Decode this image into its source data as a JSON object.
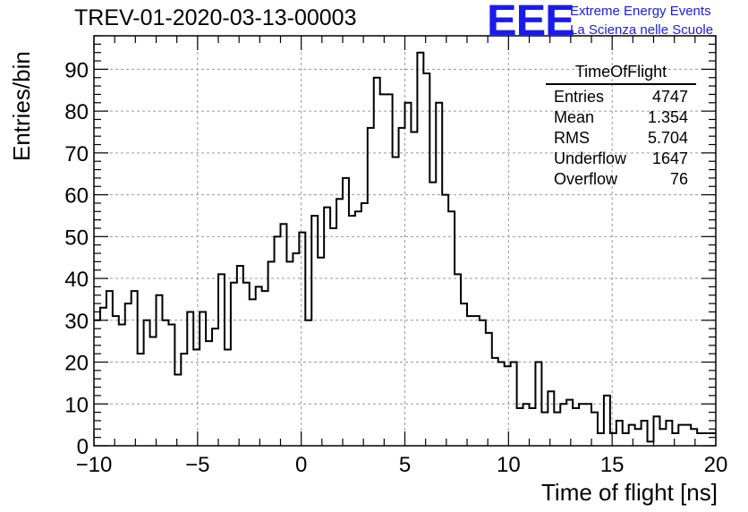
{
  "header": {
    "title": "TREV-01-2020-03-13-00003",
    "logo_text": "EEE",
    "logo_line1": "Extreme Energy Events",
    "logo_line2": "La Scienza nelle Scuole"
  },
  "stats_box": {
    "title": "TimeOfFlight",
    "rows": [
      {
        "label": "Entries",
        "value": "4747"
      },
      {
        "label": "Mean",
        "value": "1.354"
      },
      {
        "label": "RMS",
        "value": "5.704"
      },
      {
        "label": "Underflow",
        "value": "1647"
      },
      {
        "label": "Overflow",
        "value": "76"
      }
    ]
  },
  "colors": {
    "histogram": "#000000",
    "grid": "#999999",
    "logo": "#1a1aee"
  },
  "chart_data": {
    "type": "bar",
    "title": "TREV-01-2020-03-13-00003",
    "xlabel": "Time of flight [ns]",
    "ylabel": "Entries/bin",
    "xlim": [
      -10,
      20
    ],
    "ylim": [
      0,
      98
    ],
    "grid": true,
    "bin_width": 0.3,
    "xticks": [
      -10,
      -5,
      0,
      5,
      10,
      15,
      20
    ],
    "yticks": [
      0,
      10,
      20,
      30,
      40,
      50,
      60,
      70,
      80,
      90
    ],
    "values": [
      30,
      33,
      37,
      31,
      29,
      34,
      37,
      22,
      30,
      26,
      36,
      30,
      29,
      17,
      22,
      32,
      23,
      32,
      25,
      28,
      41,
      23,
      39,
      43,
      39,
      35,
      38,
      37,
      44,
      50,
      53,
      44,
      46,
      51,
      30,
      55,
      45,
      57,
      52,
      59,
      64,
      55,
      56,
      58,
      76,
      88,
      84,
      84,
      69,
      76,
      82,
      75,
      94,
      89,
      63,
      82,
      60,
      56,
      41,
      34,
      31,
      31,
      30,
      27,
      21,
      20,
      19,
      20,
      9,
      10,
      9,
      20,
      8,
      13,
      8,
      10,
      11,
      9,
      10,
      10,
      8,
      3,
      12,
      3,
      6,
      3,
      5,
      4,
      6,
      1,
      7,
      4,
      6,
      3,
      5,
      5,
      4,
      3,
      3,
      3
    ]
  }
}
